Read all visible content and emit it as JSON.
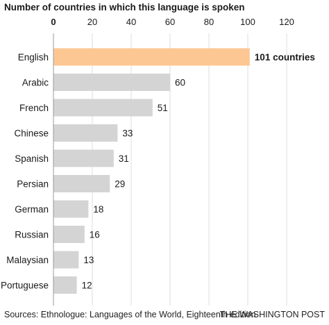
{
  "chart_data": {
    "type": "bar",
    "orientation": "horizontal",
    "title": "Number of countries in which this language is spoken",
    "categories": [
      "English",
      "Arabic",
      "French",
      "Chinese",
      "Spanish",
      "Persian",
      "German",
      "Russian",
      "Malaysian",
      "Portuguese"
    ],
    "values": [
      101,
      60,
      51,
      33,
      31,
      29,
      18,
      16,
      13,
      12
    ],
    "data_labels": [
      "101 countries",
      "60",
      "51",
      "33",
      "31",
      "29",
      "18",
      "16",
      "13",
      "12"
    ],
    "x_ticks": [
      "0",
      "20",
      "40",
      "60",
      "80",
      "100",
      "120"
    ],
    "xlim": [
      0,
      120
    ],
    "x_axis_position": "top",
    "grid": true,
    "highlight_category": "English",
    "colors": {
      "bar": "#d4d4d4",
      "highlight": "#fdc793",
      "grid": "#dddddd",
      "axis": "#999999",
      "text": "#1a1a1a"
    }
  },
  "footer": {
    "source": "Sources: Ethnologue: Languages of the World, Eighteenth edition",
    "credit": "THE WASHINGTON POST"
  }
}
